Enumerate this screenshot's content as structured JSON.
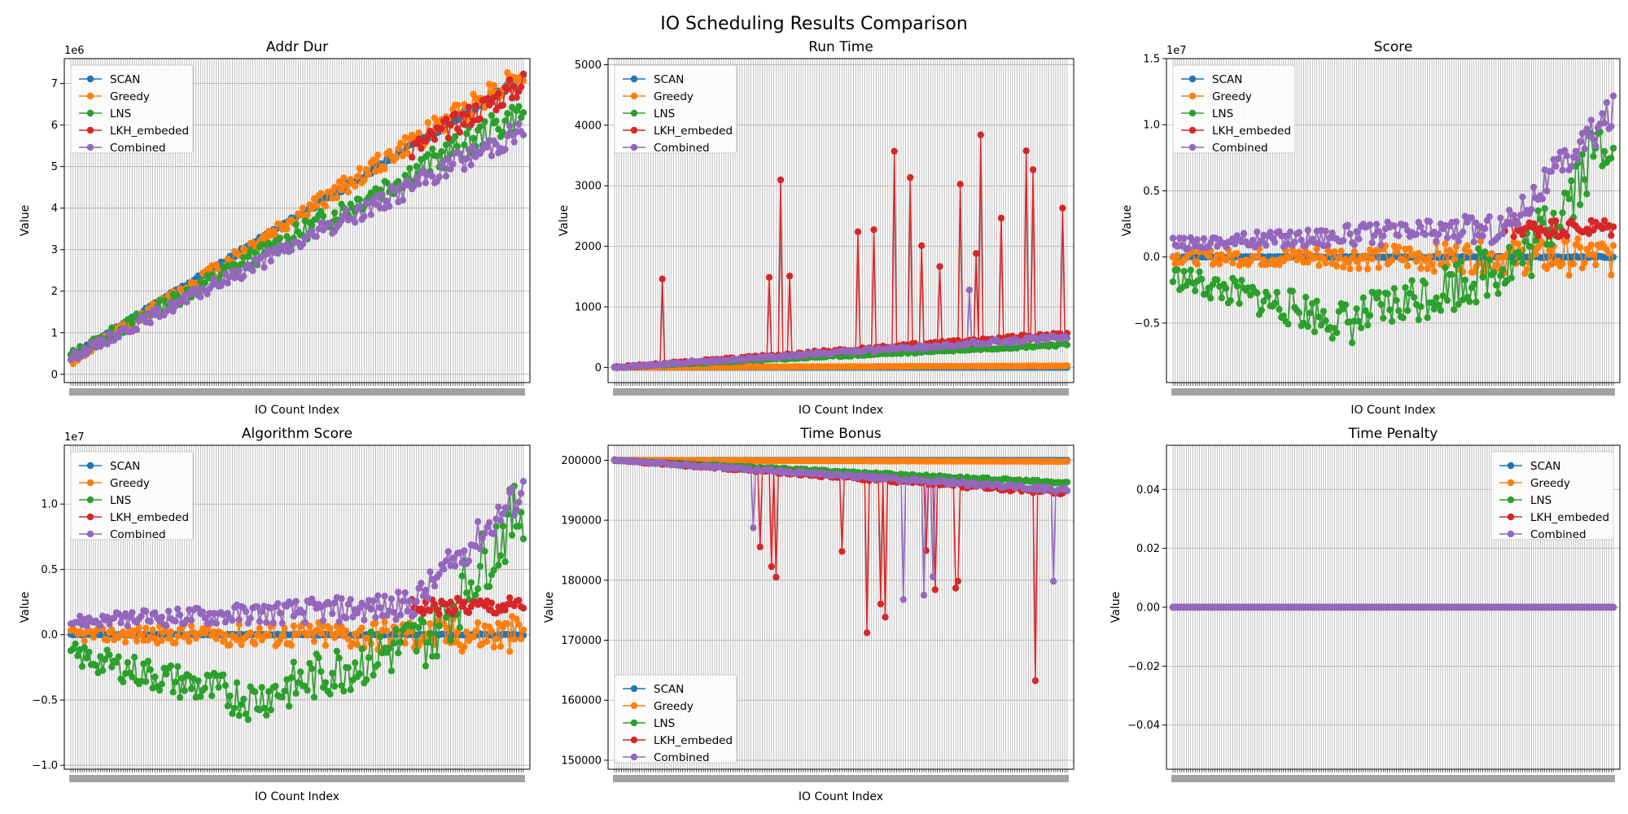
{
  "figure": {
    "title": "IO Scheduling Results Comparison"
  },
  "colors": {
    "SCAN": "#1f77b4",
    "Greedy": "#ff7f0e",
    "LNS": "#2ca02c",
    "LKH_embeded": "#d62728",
    "Combined": "#9467bd"
  },
  "chart_data": [
    {
      "type": "line",
      "title": "Addr Dur",
      "xlabel": "IO Count Index",
      "ylabel": "Value",
      "x_count": 200,
      "ylim": [
        -200000.0,
        7600000.0
      ],
      "scale_label": "1e6",
      "yticks": [
        0,
        1000000,
        2000000,
        3000000,
        4000000,
        5000000,
        6000000,
        7000000
      ],
      "ytick_labels": [
        "0",
        "1",
        "2",
        "3",
        "4",
        "5",
        "6",
        "7"
      ],
      "legend": "upper-left",
      "grid": true,
      "series": [
        {
          "name": "SCAN",
          "start": 450000,
          "end": 7150000,
          "noise": 60000,
          "spike_prob": 0,
          "spike_amp": 0,
          "seed": 11
        },
        {
          "name": "Greedy",
          "start": 300000,
          "end": 7300000,
          "noise": 200000,
          "spike_prob": 0,
          "spike_amp": 0,
          "seed": 12
        },
        {
          "name": "LNS",
          "start": 450000,
          "end": 6300000,
          "noise": 250000,
          "spike_prob": 0,
          "spike_amp": 0,
          "seed": 13
        },
        {
          "name": "LKH_embeded",
          "start": 450000,
          "end": 7000000,
          "noise": 200000,
          "spike_prob": 0,
          "spike_amp": 0,
          "seed": 14,
          "from": 150
        },
        {
          "name": "Combined",
          "start": 400000,
          "end": 5900000,
          "noise": 200000,
          "spike_prob": 0,
          "spike_amp": 0,
          "seed": 15
        }
      ]
    },
    {
      "type": "line",
      "title": "Run Time",
      "xlabel": "IO Count Index",
      "ylabel": "Value",
      "x_count": 200,
      "ylim": [
        -250,
        5100
      ],
      "yticks": [
        0,
        1000,
        2000,
        3000,
        4000,
        5000
      ],
      "ytick_labels": [
        "0",
        "1000",
        "2000",
        "3000",
        "4000",
        "5000"
      ],
      "legend": "upper-left",
      "grid": true,
      "series": [
        {
          "name": "SCAN",
          "start": 0,
          "end": 0,
          "noise": 0,
          "spike_prob": 0,
          "spike_amp": 0,
          "seed": 21
        },
        {
          "name": "Greedy",
          "start": 0,
          "end": 25,
          "noise": 3,
          "spike_prob": 0,
          "spike_amp": 0,
          "seed": 22
        },
        {
          "name": "LNS",
          "start": 0,
          "end": 380,
          "noise": 15,
          "spike_prob": 0,
          "spike_amp": 0,
          "seed": 23
        },
        {
          "name": "LKH_embeded",
          "start": 0,
          "end": 550,
          "noise": 30,
          "spike_prob": 0.1,
          "spike_amp": 3500,
          "seed": 24
        },
        {
          "name": "Combined",
          "start": 0,
          "end": 500,
          "noise": 25,
          "spike_prob": 0.03,
          "spike_amp": 2500,
          "seed": 25
        }
      ]
    },
    {
      "type": "line",
      "title": "Score",
      "xlabel": "IO Count Index",
      "ylabel": "Value",
      "x_count": 200,
      "ylim": [
        -9500000.0,
        15000000.0
      ],
      "scale_label": "1e7",
      "yticks": [
        -5000000,
        0,
        5000000,
        10000000,
        15000000
      ],
      "ytick_labels": [
        "−0.5",
        "0.0",
        "0.5",
        "1.0",
        "1.5"
      ],
      "legend": "upper-left",
      "grid": true,
      "series": [
        {
          "name": "SCAN",
          "start": 0,
          "end": 0,
          "noise": 50000,
          "spike_prob": 0,
          "spike_amp": 0,
          "seed": 31
        },
        {
          "name": "Greedy",
          "start": 0,
          "end": 0,
          "noise": 1000000,
          "spike_prob": 0,
          "spike_amp": 0,
          "seed": 32
        },
        {
          "name": "LNS",
          "start": -1500000,
          "end": 10000000,
          "noise": 1800000,
          "spike_prob": 0,
          "spike_amp": 0,
          "seed": 33,
          "dip": -5000000
        },
        {
          "name": "LKH_embeded",
          "start": 2000000,
          "end": 2200000,
          "noise": 500000,
          "spike_prob": 0,
          "spike_amp": 0,
          "seed": 34,
          "from": 150
        },
        {
          "name": "Combined",
          "start": 1000000,
          "end": 11000000,
          "noise": 900000,
          "spike_prob": 0,
          "spike_amp": 0,
          "seed": 35,
          "mid": 2200000
        }
      ]
    },
    {
      "type": "line",
      "title": "Algorithm Score",
      "xlabel": "IO Count Index",
      "ylabel": "Value",
      "x_count": 200,
      "ylim": [
        -10300000.0,
        14500000.0
      ],
      "scale_label": "1e7",
      "yticks": [
        -10000000,
        -5000000,
        0,
        5000000,
        10000000
      ],
      "ytick_labels": [
        "−1.0",
        "−0.5",
        "0.0",
        "0.5",
        "1.0"
      ],
      "legend": "upper-left",
      "grid": true,
      "series": [
        {
          "name": "SCAN",
          "start": 0,
          "end": 0,
          "noise": 50000,
          "spike_prob": 0,
          "spike_amp": 0,
          "seed": 41
        },
        {
          "name": "Greedy",
          "start": 0,
          "end": 0,
          "noise": 1000000,
          "spike_prob": 0,
          "spike_amp": 0,
          "seed": 42
        },
        {
          "name": "LNS",
          "start": -1500000,
          "end": 10000000,
          "noise": 1800000,
          "spike_prob": 0,
          "spike_amp": 0,
          "seed": 43,
          "dip": -5000000
        },
        {
          "name": "LKH_embeded",
          "start": 2000000,
          "end": 2200000,
          "noise": 500000,
          "spike_prob": 0,
          "spike_amp": 0,
          "seed": 44,
          "from": 150
        },
        {
          "name": "Combined",
          "start": 1000000,
          "end": 11000000,
          "noise": 900000,
          "spike_prob": 0,
          "spike_amp": 0,
          "seed": 45,
          "mid": 2200000
        }
      ]
    },
    {
      "type": "line",
      "title": "Time Bonus",
      "xlabel": "IO Count Index",
      "ylabel": "Value",
      "x_count": 200,
      "ylim": [
        148500,
        202500
      ],
      "yticks": [
        150000,
        160000,
        170000,
        180000,
        190000,
        200000
      ],
      "ytick_labels": [
        "150000",
        "160000",
        "170000",
        "180000",
        "190000",
        "200000"
      ],
      "legend": "lower-left",
      "grid": true,
      "series": [
        {
          "name": "SCAN",
          "start": 200000,
          "end": 200000,
          "noise": 0,
          "spike_prob": 0,
          "spike_amp": 0,
          "seed": 51
        },
        {
          "name": "Greedy",
          "start": 200000,
          "end": 199800,
          "noise": 20,
          "spike_prob": 0,
          "spike_amp": 0,
          "seed": 52
        },
        {
          "name": "LNS",
          "start": 200000,
          "end": 196200,
          "noise": 150,
          "spike_prob": 0,
          "spike_amp": 0,
          "seed": 53
        },
        {
          "name": "LKH_embeded",
          "start": 200000,
          "end": 194500,
          "noise": 300,
          "spike_prob": 0.1,
          "spike_amp": -35000,
          "seed": 54
        },
        {
          "name": "Combined",
          "start": 200000,
          "end": 195000,
          "noise": 250,
          "spike_prob": 0.03,
          "spike_amp": -25000,
          "seed": 55
        }
      ]
    },
    {
      "type": "line",
      "title": "Time Penalty",
      "xlabel": "",
      "ylabel": "Value",
      "x_count": 200,
      "ylim": [
        -0.055,
        0.055
      ],
      "yticks": [
        -0.04,
        -0.02,
        0,
        0.02,
        0.04
      ],
      "ytick_labels": [
        "−0.04",
        "−0.02",
        "0.00",
        "0.02",
        "0.04"
      ],
      "legend": "upper-right",
      "grid": true,
      "series": [
        {
          "name": "SCAN",
          "start": 0,
          "end": 0,
          "noise": 0,
          "spike_prob": 0,
          "spike_amp": 0,
          "seed": 61
        },
        {
          "name": "Greedy",
          "start": 0,
          "end": 0,
          "noise": 0,
          "spike_prob": 0,
          "spike_amp": 0,
          "seed": 62
        },
        {
          "name": "LNS",
          "start": 0,
          "end": 0,
          "noise": 0,
          "spike_prob": 0,
          "spike_amp": 0,
          "seed": 63
        },
        {
          "name": "LKH_embeded",
          "start": 0,
          "end": 0,
          "noise": 0,
          "spike_prob": 0,
          "spike_amp": 0,
          "seed": 64
        },
        {
          "name": "Combined",
          "start": 0,
          "end": 0,
          "noise": 0,
          "spike_prob": 0,
          "spike_amp": 0,
          "seed": 65
        }
      ]
    }
  ]
}
